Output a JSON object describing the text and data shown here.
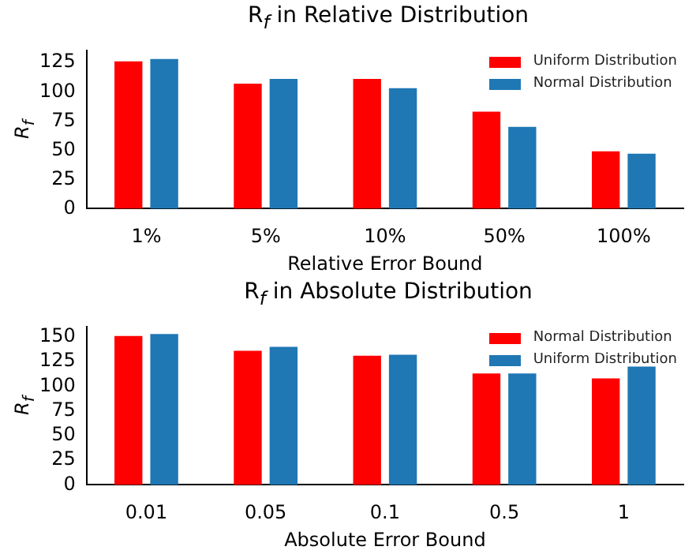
{
  "chart_data": [
    {
      "type": "bar",
      "title": "R$_{f}$ in Relative Distribution",
      "xlabel": "Relative Error Bound",
      "ylabel": "R$_{f}$",
      "categories": [
        "1%",
        "5%",
        "10%",
        "50%",
        "100%"
      ],
      "series": [
        {
          "name": "Uniform Distribution",
          "color": "#ff0000",
          "values": [
            126,
            107,
            111,
            83,
            49
          ]
        },
        {
          "name": "Normal Distribution",
          "color": "#1f77b4",
          "values": [
            128,
            111,
            103,
            70,
            47
          ]
        }
      ],
      "ylim": [
        0,
        135
      ],
      "yticks": [
        0,
        25,
        50,
        75,
        100,
        125
      ],
      "grid": false,
      "legend": "top right"
    },
    {
      "type": "bar",
      "title": "R$_{f}$ in Absolute Distribution",
      "xlabel": "Absolute Error Bound",
      "ylabel": "R$_{f}$",
      "categories": [
        "0.01",
        "0.05",
        "0.1",
        "0.5",
        "1"
      ],
      "series": [
        {
          "name": "Normal Distribution",
          "color": "#ff0000",
          "values": [
            151,
            136,
            131,
            113,
            108
          ]
        },
        {
          "name": "Uniform Distribution",
          "color": "#1f77b4",
          "values": [
            153,
            140,
            132,
            113,
            120
          ]
        }
      ],
      "ylim": [
        0,
        160
      ],
      "yticks": [
        0,
        25,
        50,
        75,
        100,
        125,
        150
      ],
      "grid": false,
      "legend": "top right"
    }
  ]
}
